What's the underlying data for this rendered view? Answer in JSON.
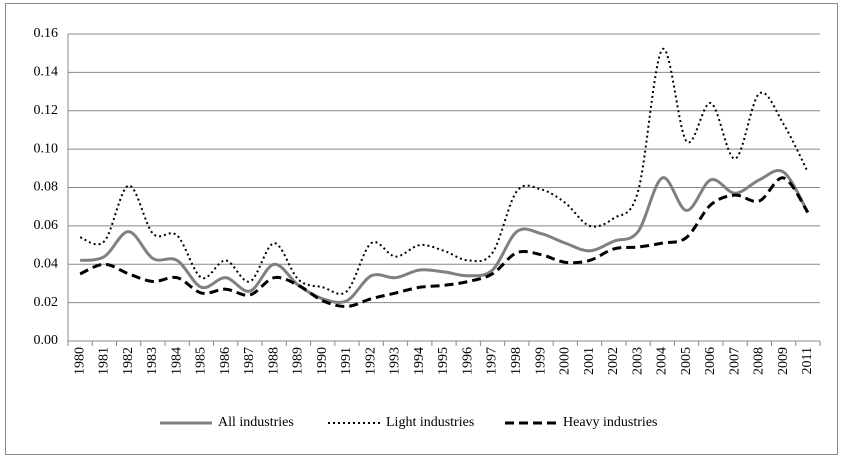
{
  "chart_data": {
    "type": "line",
    "categories": [
      "1980",
      "1981",
      "1982",
      "1983",
      "1984",
      "1985",
      "1986",
      "1987",
      "1988",
      "1989",
      "1990",
      "1991",
      "1992",
      "1993",
      "1994",
      "1995",
      "1996",
      "1997",
      "1998",
      "1999",
      "2000",
      "2001",
      "2002",
      "2003",
      "2004",
      "2005",
      "2006",
      "2007",
      "2008",
      "2009",
      "2011"
    ],
    "series": [
      {
        "name": "All industries",
        "color": "#808080",
        "style": "solid",
        "values": [
          0.042,
          0.044,
          0.057,
          0.043,
          0.042,
          0.028,
          0.033,
          0.026,
          0.04,
          0.029,
          0.022,
          0.021,
          0.034,
          0.033,
          0.037,
          0.036,
          0.034,
          0.037,
          0.057,
          0.056,
          0.051,
          0.047,
          0.052,
          0.057,
          0.085,
          0.068,
          0.084,
          0.077,
          0.084,
          0.088,
          0.067
        ]
      },
      {
        "name": "Light industries",
        "color": "#000000",
        "style": "dotted",
        "values": [
          0.054,
          0.052,
          0.081,
          0.056,
          0.055,
          0.033,
          0.042,
          0.031,
          0.051,
          0.032,
          0.028,
          0.026,
          0.051,
          0.044,
          0.05,
          0.047,
          0.042,
          0.046,
          0.078,
          0.079,
          0.072,
          0.06,
          0.064,
          0.078,
          0.152,
          0.104,
          0.124,
          0.095,
          0.129,
          0.113,
          0.088
        ]
      },
      {
        "name": "Heavy industries",
        "color": "#000000",
        "style": "dashed",
        "values": [
          0.035,
          0.04,
          0.035,
          0.031,
          0.033,
          0.025,
          0.027,
          0.024,
          0.033,
          0.029,
          0.021,
          0.018,
          0.022,
          0.025,
          0.028,
          0.029,
          0.031,
          0.035,
          0.046,
          0.045,
          0.041,
          0.042,
          0.048,
          0.049,
          0.051,
          0.054,
          0.071,
          0.076,
          0.073,
          0.085,
          0.067
        ]
      }
    ],
    "ylim": [
      0,
      0.16
    ],
    "yticks": [
      {
        "value": 0,
        "label": "0.00"
      },
      0.02,
      0.04,
      0.06,
      0.08,
      {
        "value": 0.1,
        "label": "0.10"
      },
      0.12,
      0.14,
      0.16
    ],
    "grid": true,
    "legend": "bottom"
  }
}
